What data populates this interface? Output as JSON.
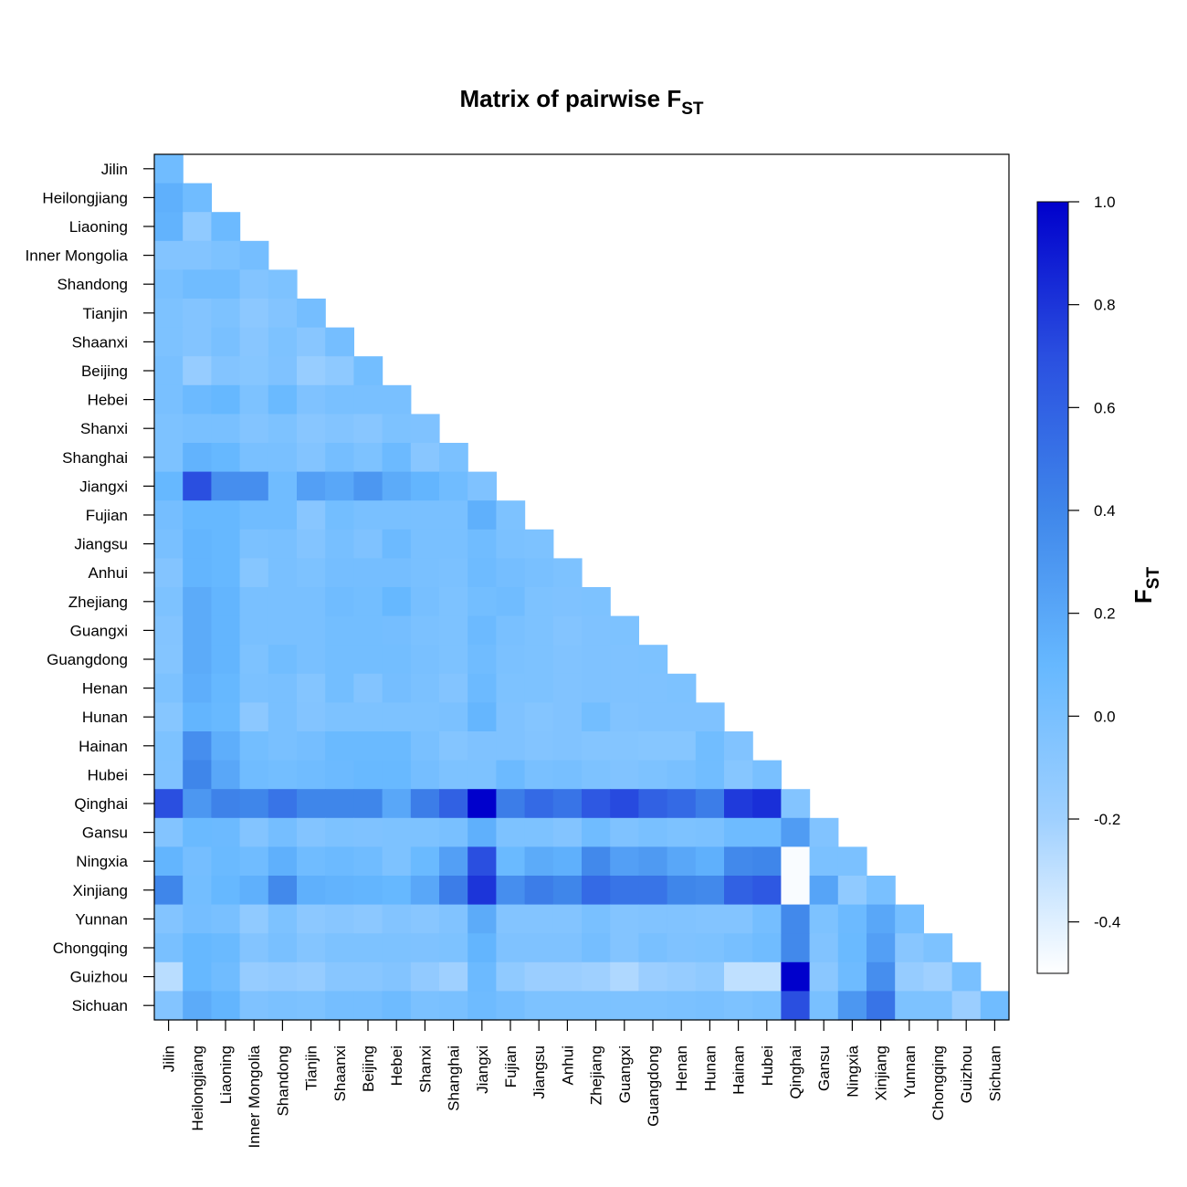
{
  "chart_data": {
    "type": "heatmap",
    "title": "Matrix of pairwise F",
    "title_subscript": "ST",
    "colorbar_label": "F",
    "colorbar_label_subscript": "ST",
    "value_range": [
      -0.5,
      1.0
    ],
    "colorbar_ticks": [
      "1.0",
      "0.8",
      "0.6",
      "0.4",
      "0.2",
      "0.0",
      "-0.2",
      "-0.4"
    ],
    "colorbar_tick_values": [
      1.0,
      0.8,
      0.6,
      0.4,
      0.2,
      0.0,
      -0.2,
      -0.4
    ],
    "colorscale": [
      "#ffffff",
      "#9fd0ff",
      "#66b8ff",
      "#3f86ea",
      "#2a4fe0",
      "#0000cc"
    ],
    "populations": [
      "Jilin",
      "Heilongjiang",
      "Liaoning",
      "Inner Mongolia",
      "Shandong",
      "Tianjin",
      "Shaanxi",
      "Beijing",
      "Hebei",
      "Shanxi",
      "Shanghai",
      "Jiangxi",
      "Fujian",
      "Jiangsu",
      "Anhui",
      "Zhejiang",
      "Guangxi",
      "Guangdong",
      "Henan",
      "Hunan",
      "Hainan",
      "Hubei",
      "Qinghai",
      "Gansu",
      "Ningxia",
      "Xinjiang",
      "Yunnan",
      "Chongqing",
      "Guizhou",
      "Sichuan"
    ],
    "rows": [
      [
        0.05
      ],
      [
        0.15,
        0.05
      ],
      [
        0.13,
        -0.12,
        0.07
      ],
      [
        -0.05,
        -0.05,
        -0.02,
        0.02
      ],
      [
        0.0,
        0.05,
        0.05,
        -0.05,
        -0.02
      ],
      [
        -0.02,
        -0.05,
        -0.02,
        -0.1,
        -0.05,
        0.02
      ],
      [
        -0.02,
        -0.05,
        0.0,
        -0.08,
        -0.02,
        -0.08,
        0.02
      ],
      [
        0.0,
        -0.15,
        -0.05,
        -0.07,
        -0.03,
        -0.16,
        -0.11,
        0.03
      ],
      [
        0.0,
        0.07,
        0.1,
        -0.02,
        0.08,
        -0.03,
        0.0,
        0.0,
        0.0
      ],
      [
        -0.02,
        0.0,
        0.0,
        -0.05,
        -0.02,
        -0.08,
        -0.05,
        -0.08,
        -0.02,
        -0.03
      ],
      [
        -0.02,
        0.13,
        0.1,
        0.0,
        0.0,
        -0.05,
        0.02,
        -0.02,
        0.07,
        -0.08,
        -0.01
      ],
      [
        0.1,
        0.7,
        0.35,
        0.35,
        0.05,
        0.25,
        0.2,
        0.3,
        0.18,
        0.12,
        0.05,
        -0.03
      ],
      [
        0.02,
        0.1,
        0.1,
        0.05,
        0.05,
        -0.08,
        0.03,
        0.0,
        0.0,
        0.0,
        0.0,
        0.15,
        -0.02
      ],
      [
        0.0,
        0.12,
        0.1,
        -0.01,
        0.0,
        -0.05,
        0.01,
        -0.03,
        0.07,
        0.0,
        0.0,
        0.05,
        -0.01,
        -0.02
      ],
      [
        -0.05,
        0.12,
        0.1,
        -0.07,
        0.0,
        -0.02,
        0.02,
        0.02,
        0.02,
        0.0,
        -0.01,
        0.06,
        0.02,
        0.0,
        -0.02
      ],
      [
        -0.02,
        0.18,
        0.12,
        0.0,
        0.0,
        0.0,
        0.05,
        0.03,
        0.1,
        0.01,
        -0.02,
        0.03,
        0.05,
        -0.02,
        -0.03,
        -0.02
      ],
      [
        -0.05,
        0.18,
        0.12,
        0.0,
        0.0,
        0.0,
        0.03,
        0.03,
        0.02,
        -0.01,
        -0.02,
        0.07,
        0.0,
        -0.02,
        -0.05,
        -0.03,
        -0.02
      ],
      [
        -0.06,
        0.18,
        0.12,
        -0.02,
        0.04,
        0.0,
        0.03,
        0.03,
        0.03,
        0.0,
        -0.02,
        0.05,
        -0.01,
        -0.02,
        -0.04,
        -0.03,
        -0.03,
        -0.02
      ],
      [
        -0.02,
        0.16,
        0.1,
        -0.01,
        0.0,
        -0.06,
        0.03,
        -0.05,
        0.02,
        -0.01,
        -0.05,
        0.07,
        -0.02,
        -0.02,
        -0.04,
        -0.03,
        -0.03,
        -0.03,
        -0.02
      ],
      [
        -0.07,
        0.12,
        0.09,
        -0.1,
        0.0,
        -0.05,
        -0.02,
        -0.02,
        -0.02,
        -0.02,
        -0.01,
        0.11,
        -0.03,
        -0.06,
        -0.04,
        0.03,
        -0.04,
        -0.03,
        -0.03,
        -0.03
      ],
      [
        -0.02,
        0.35,
        0.16,
        0.03,
        0.0,
        0.02,
        0.08,
        0.08,
        0.08,
        0.0,
        -0.06,
        -0.03,
        -0.03,
        -0.05,
        -0.04,
        -0.06,
        -0.06,
        -0.07,
        -0.07,
        0.04,
        -0.04
      ],
      [
        -0.03,
        0.4,
        0.2,
        0.05,
        0.03,
        0.05,
        0.07,
        0.09,
        0.09,
        0.02,
        -0.02,
        -0.02,
        0.07,
        0.0,
        0.01,
        -0.02,
        -0.04,
        -0.02,
        0.0,
        0.04,
        -0.07,
        0.0
      ],
      [
        0.7,
        0.3,
        0.42,
        0.4,
        0.5,
        0.4,
        0.4,
        0.4,
        0.2,
        0.45,
        0.6,
        1.0,
        0.45,
        0.55,
        0.5,
        0.65,
        0.72,
        0.6,
        0.55,
        0.45,
        0.78,
        0.82,
        -0.05
      ],
      [
        -0.05,
        0.08,
        0.07,
        -0.05,
        0.02,
        -0.05,
        -0.02,
        -0.03,
        -0.02,
        -0.02,
        0.0,
        0.15,
        -0.02,
        -0.02,
        -0.05,
        0.05,
        -0.03,
        0.0,
        -0.02,
        -0.01,
        0.06,
        0.06,
        0.27,
        -0.04
      ],
      [
        0.12,
        0.02,
        0.08,
        0.05,
        0.15,
        0.05,
        0.07,
        0.05,
        -0.02,
        0.08,
        0.25,
        0.7,
        0.08,
        0.18,
        0.15,
        0.38,
        0.25,
        0.28,
        0.2,
        0.15,
        0.38,
        0.4,
        -0.48,
        -0.01,
        -0.01
      ],
      [
        0.4,
        0.03,
        0.1,
        0.15,
        0.38,
        0.15,
        0.13,
        0.12,
        0.1,
        0.2,
        0.45,
        0.8,
        0.35,
        0.45,
        0.4,
        0.55,
        0.5,
        0.5,
        0.4,
        0.38,
        0.6,
        0.65,
        -0.48,
        0.22,
        -0.12,
        0.0
      ],
      [
        -0.05,
        0.02,
        0.0,
        -0.12,
        -0.02,
        -0.1,
        -0.08,
        -0.1,
        -0.05,
        -0.08,
        -0.04,
        0.18,
        -0.05,
        -0.05,
        -0.05,
        0.0,
        -0.05,
        -0.04,
        -0.04,
        -0.05,
        -0.05,
        0.02,
        0.38,
        -0.02,
        0.07,
        0.2,
        0.02
      ],
      [
        0.0,
        0.1,
        0.08,
        -0.05,
        0.0,
        -0.06,
        -0.02,
        -0.02,
        -0.02,
        -0.03,
        -0.02,
        0.12,
        -0.03,
        -0.03,
        -0.03,
        0.02,
        -0.05,
        0.0,
        -0.03,
        -0.02,
        0.01,
        0.05,
        0.38,
        -0.04,
        0.08,
        0.25,
        -0.08,
        -0.02
      ],
      [
        -0.28,
        0.1,
        0.05,
        -0.15,
        -0.13,
        -0.15,
        -0.08,
        -0.08,
        -0.05,
        -0.13,
        -0.2,
        0.07,
        -0.12,
        -0.18,
        -0.18,
        -0.2,
        -0.25,
        -0.18,
        -0.15,
        -0.12,
        -0.3,
        -0.3,
        1.0,
        -0.09,
        0.06,
        0.35,
        -0.15,
        -0.2,
        0.0
      ],
      [
        -0.05,
        0.18,
        0.12,
        -0.03,
        -0.01,
        -0.02,
        0.02,
        0.02,
        0.06,
        -0.01,
        0.0,
        0.06,
        0.02,
        -0.02,
        -0.02,
        -0.02,
        -0.02,
        -0.02,
        -0.01,
        0.0,
        -0.02,
        0.0,
        0.7,
        0.0,
        0.3,
        0.5,
        -0.02,
        -0.02,
        -0.18,
        0.05
      ]
    ]
  }
}
